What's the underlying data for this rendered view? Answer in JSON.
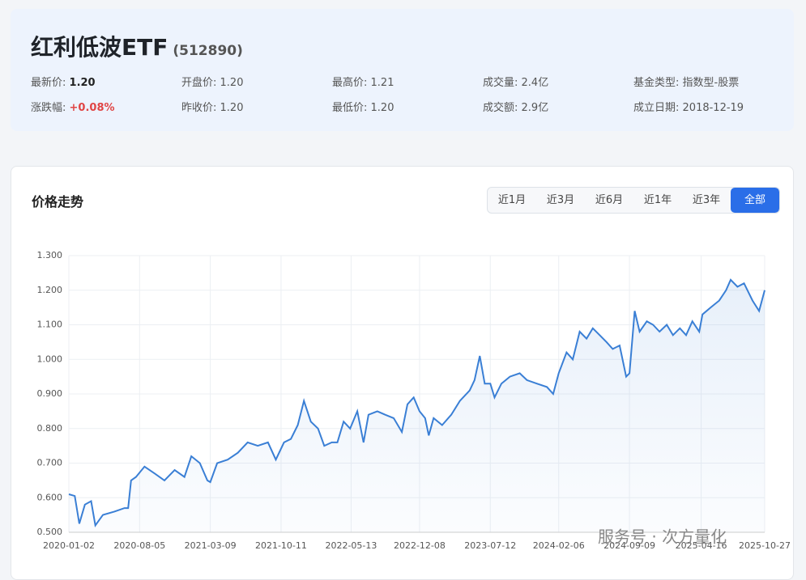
{
  "header": {
    "title": "红利低波ETF",
    "code": "(512890)",
    "fields": [
      {
        "label": "最新价:",
        "value": "1.20"
      },
      {
        "label": "开盘价:",
        "value": "1.20"
      },
      {
        "label": "最高价:",
        "value": "1.21"
      },
      {
        "label": "成交量:",
        "value": "2.4亿"
      },
      {
        "label": "基金类型:",
        "value": "指数型-股票"
      },
      {
        "label": "涨跌幅:",
        "value": "+0.08%"
      },
      {
        "label": "昨收价:",
        "value": "1.20"
      },
      {
        "label": "最低价:",
        "value": "1.20"
      },
      {
        "label": "成交额:",
        "value": "2.9亿"
      },
      {
        "label": "成立日期:",
        "value": "2018-12-19"
      }
    ]
  },
  "controls": {
    "ranges": [
      "近1月",
      "近3月",
      "近6月",
      "近1年",
      "近3年",
      "全部"
    ],
    "active": 5
  },
  "watermark": "服务号 · 次方量化",
  "chart_data": {
    "type": "line",
    "title": "价格走势",
    "color": "#3a7fd5",
    "grid": true,
    "x": [
      "2020-01-02",
      "2020-01-20",
      "2020-02-03",
      "2020-02-20",
      "2020-03-10",
      "2020-03-23",
      "2020-04-15",
      "2020-05-20",
      "2020-06-20",
      "2020-07-01",
      "2020-07-10",
      "2020-07-25",
      "2020-08-20",
      "2020-09-20",
      "2020-10-20",
      "2020-11-20",
      "2020-12-20",
      "2021-01-10",
      "2021-02-05",
      "2021-02-28",
      "2021-03-09",
      "2021-03-30",
      "2021-05-01",
      "2021-06-01",
      "2021-07-01",
      "2021-08-01",
      "2021-09-01",
      "2021-09-25",
      "2021-10-20",
      "2021-11-10",
      "2021-12-01",
      "2021-12-20",
      "2022-01-10",
      "2022-02-01",
      "2022-02-20",
      "2022-03-15",
      "2022-04-01",
      "2022-04-20",
      "2022-05-10",
      "2022-06-01",
      "2022-06-20",
      "2022-07-05",
      "2022-08-01",
      "2022-08-25",
      "2022-09-20",
      "2022-10-15",
      "2022-11-01",
      "2022-11-20",
      "2022-12-08",
      "2022-12-25",
      "2023-01-05",
      "2023-01-20",
      "2023-02-15",
      "2023-03-15",
      "2023-04-10",
      "2023-05-10",
      "2023-05-25",
      "2023-06-10",
      "2023-06-25",
      "2023-07-12",
      "2023-07-25",
      "2023-08-15",
      "2023-09-10",
      "2023-10-10",
      "2023-11-01",
      "2023-12-01",
      "2024-01-01",
      "2024-01-20",
      "2024-02-06",
      "2024-03-01",
      "2024-03-20",
      "2024-04-10",
      "2024-05-01",
      "2024-05-20",
      "2024-06-10",
      "2024-07-01",
      "2024-07-20",
      "2024-08-10",
      "2024-08-30",
      "2024-09-09",
      "2024-09-25",
      "2024-10-10",
      "2024-11-01",
      "2024-11-20",
      "2024-12-10",
      "2025-01-01",
      "2025-01-20",
      "2025-02-10",
      "2025-03-01",
      "2025-03-20",
      "2025-04-10",
      "2025-04-20",
      "2025-05-15",
      "2025-06-10",
      "2025-07-01",
      "2025-07-15",
      "2025-08-05",
      "2025-08-25",
      "2025-09-20",
      "2025-10-10",
      "2025-10-27"
    ],
    "values": [
      0.61,
      0.605,
      0.525,
      0.58,
      0.59,
      0.52,
      0.55,
      0.56,
      0.57,
      0.57,
      0.65,
      0.66,
      0.69,
      0.67,
      0.65,
      0.68,
      0.66,
      0.72,
      0.7,
      0.65,
      0.645,
      0.7,
      0.71,
      0.73,
      0.76,
      0.75,
      0.76,
      0.71,
      0.76,
      0.77,
      0.81,
      0.88,
      0.82,
      0.8,
      0.75,
      0.76,
      0.76,
      0.82,
      0.8,
      0.85,
      0.76,
      0.84,
      0.85,
      0.84,
      0.83,
      0.79,
      0.87,
      0.89,
      0.85,
      0.83,
      0.78,
      0.83,
      0.81,
      0.84,
      0.88,
      0.91,
      0.94,
      1.01,
      0.93,
      0.93,
      0.89,
      0.93,
      0.95,
      0.96,
      0.94,
      0.93,
      0.92,
      0.9,
      0.96,
      1.02,
      1.0,
      1.08,
      1.06,
      1.09,
      1.07,
      1.05,
      1.03,
      1.04,
      0.95,
      0.96,
      1.14,
      1.08,
      1.11,
      1.1,
      1.08,
      1.1,
      1.07,
      1.09,
      1.07,
      1.11,
      1.08,
      1.13,
      1.15,
      1.17,
      1.2,
      1.23,
      1.21,
      1.22,
      1.17,
      1.14,
      1.2
    ],
    "xlim": [
      "2020-01-02",
      "2025-10-27"
    ],
    "xticks": [
      "2020-01-02",
      "2020-08-05",
      "2021-03-09",
      "2021-10-11",
      "2022-05-13",
      "2022-12-08",
      "2023-07-12",
      "2024-02-06",
      "2024-09-09",
      "2025-04-16",
      "2025-10-27"
    ],
    "ylim": [
      0.5,
      1.3
    ],
    "yticks": [
      {
        "value": 0.5,
        "label": "0.500"
      },
      {
        "value": 0.6,
        "label": "0.600"
      },
      {
        "value": 0.7,
        "label": "0.700"
      },
      {
        "value": 0.8,
        "label": "0.800"
      },
      {
        "value": 0.9,
        "label": "0.900"
      },
      {
        "value": 1.0,
        "label": "1.000"
      },
      {
        "value": 1.1,
        "label": "1.100"
      },
      {
        "value": 1.2,
        "label": "1.200"
      },
      {
        "value": 1.3,
        "label": "1.300"
      }
    ]
  }
}
